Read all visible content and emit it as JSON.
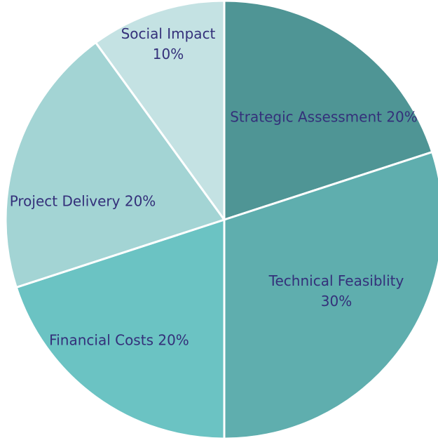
{
  "chart_data": {
    "type": "pie",
    "categories": [
      "Strategic Assessment",
      "Technical Feasiblity",
      "Financial Costs",
      "Project Delivery",
      "Social Impact"
    ],
    "values": [
      20,
      30,
      20,
      20,
      10
    ],
    "value_labels": [
      "20%",
      "30%",
      "20%",
      "20%",
      "10%"
    ],
    "colors": [
      "#4f9595",
      "#5faeae",
      "#6bc3c3",
      "#a3d4d4",
      "#c4e2e3"
    ]
  }
}
